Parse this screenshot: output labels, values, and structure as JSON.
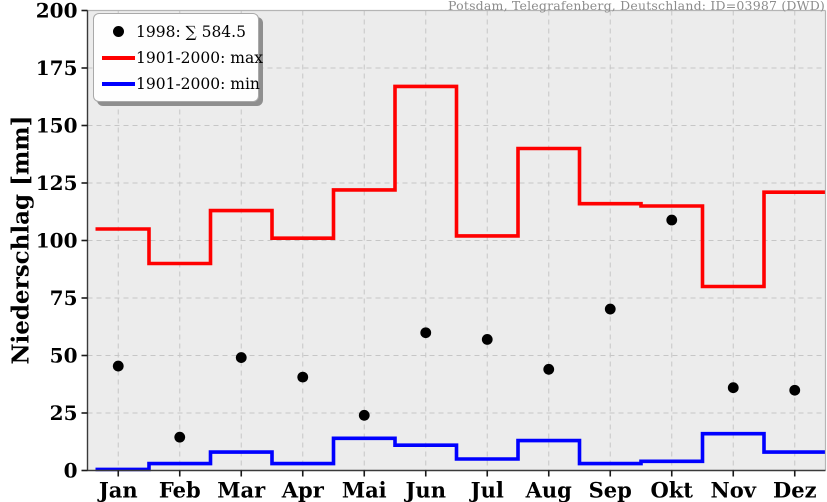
{
  "annotation": {
    "station": "Potsdam, Telegrafenberg, Deutschland: ID=03987 (DWD)"
  },
  "axes": {
    "ylabel": "Niederschlag [mm]"
  },
  "legend": {
    "position": "upper left",
    "items": [
      {
        "label": "1998: ∑ 584.5",
        "marker": "dot",
        "color": "#000000"
      },
      {
        "label": "1901-2000: max",
        "marker": "line",
        "color": "#ff0000"
      },
      {
        "label": "1901-2000: min",
        "marker": "line",
        "color": "#0000ff"
      }
    ]
  },
  "chart_data": {
    "type": "line",
    "title": "Potsdam, Telegrafenberg, Deutschland: ID=03987 (DWD)",
    "xlabel": "",
    "ylabel": "Niederschlag [mm]",
    "ylim": [
      0,
      200
    ],
    "yticks": [
      0,
      25,
      50,
      75,
      100,
      125,
      150,
      175,
      200
    ],
    "grid": true,
    "legend_position": "upper left",
    "categories": [
      "Jan",
      "Feb",
      "Mar",
      "Apr",
      "Mai",
      "Jun",
      "Jul",
      "Aug",
      "Sep",
      "Okt",
      "Nov",
      "Dez"
    ],
    "series": [
      {
        "name": "1998: ∑ 584.5",
        "style": "scatter",
        "color": "#000000",
        "values": [
          45.4,
          14.5,
          49.1,
          40.6,
          24.0,
          59.9,
          57.0,
          44.0,
          70.2,
          108.9,
          36.0,
          34.9
        ]
      },
      {
        "name": "1901-2000: max",
        "style": "step",
        "color": "#ff0000",
        "values": [
          105,
          90,
          113,
          101,
          122,
          167,
          102,
          140,
          116,
          115,
          80,
          121
        ]
      },
      {
        "name": "1901-2000: min",
        "style": "step",
        "color": "#0000ff",
        "values": [
          0.5,
          3,
          8,
          3,
          14,
          11,
          5,
          13,
          3,
          4,
          16,
          8
        ]
      }
    ],
    "colors": {
      "plot_bg": "#ececec",
      "grid": "#c6c6c6",
      "spine_dark": "#3a3a3a",
      "spine_light": "#b5b5b5",
      "tick": "#1a1a1a",
      "tick_label": "#000000"
    }
  }
}
